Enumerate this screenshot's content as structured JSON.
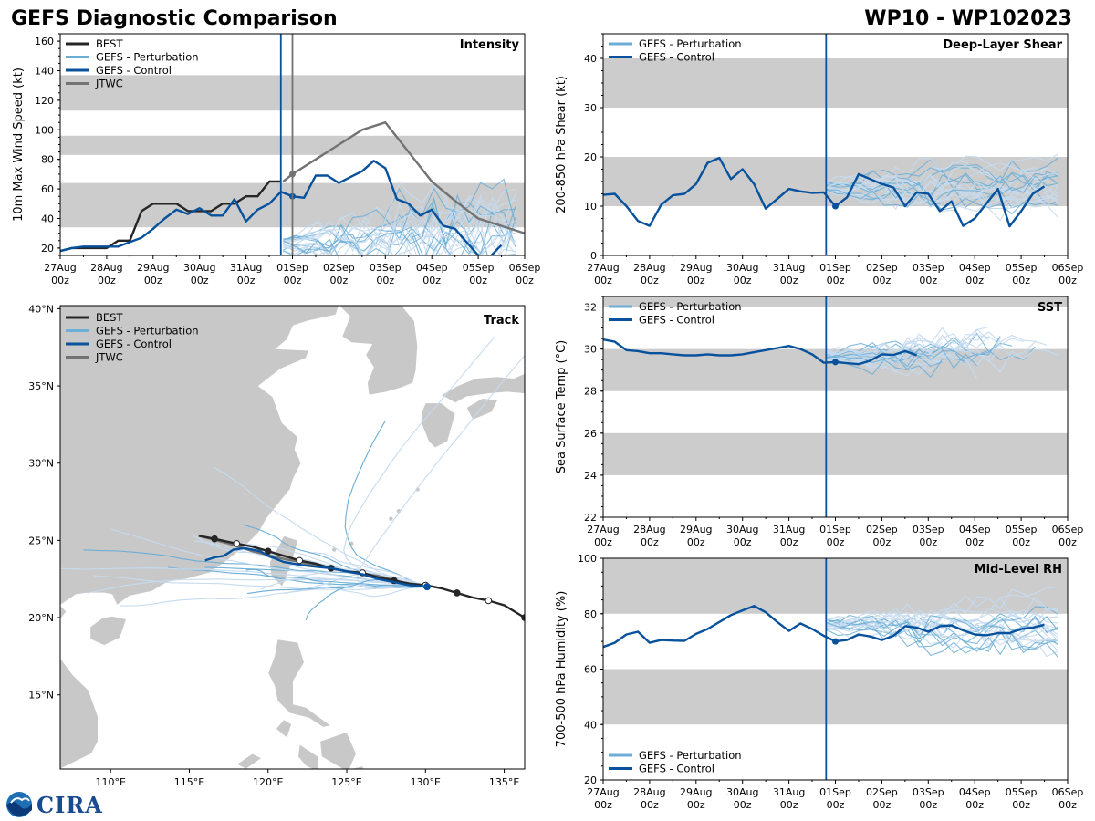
{
  "figure": {
    "title_left": "GEFS Diagnostic Comparison",
    "title_right": "WP10 - WP102023",
    "logo_text": "CIRA",
    "logo_icon": "noaa-logo-icon",
    "init_day": 4.8
  },
  "colors": {
    "best": "#262626",
    "perturbation": "#6baed6",
    "perturbation_light": "#c6dbef",
    "control": "#08519c",
    "jtwc": "#737373",
    "band": "#cccccc",
    "land": "#c8c8c8",
    "vline_init": "#08519c",
    "vline_jtwc": "#737373"
  },
  "chart_data": [
    {
      "id": "intensity",
      "type": "line",
      "title": "Intensity",
      "ylabel": "10m Max Wind Speed (kt)",
      "xlabel": "",
      "x_tick_labels": [
        [
          "27Aug",
          "00z"
        ],
        [
          "28Aug",
          "00z"
        ],
        [
          "29Aug",
          "00z"
        ],
        [
          "30Aug",
          "00z"
        ],
        [
          "31Aug",
          "00z"
        ],
        [
          "01Sep",
          "00z"
        ],
        [
          "02Sep",
          "00z"
        ],
        [
          "03Sep",
          "00z"
        ],
        [
          "04Sep",
          "00z"
        ],
        [
          "05Sep",
          "00z"
        ],
        [
          "06Sep",
          "00z"
        ]
      ],
      "xlim": [
        0,
        10
      ],
      "ylim": [
        15,
        165
      ],
      "y_ticks": [
        20,
        40,
        60,
        80,
        100,
        120,
        140,
        160
      ],
      "bands": [
        [
          34,
          64
        ],
        [
          83,
          96
        ],
        [
          113,
          137
        ]
      ],
      "vlines": [
        4.75,
        5.0
      ],
      "legend": [
        "BEST",
        "GEFS - Perturbation",
        "GEFS - Control",
        "JTWC"
      ],
      "series": [
        {
          "name": "BEST",
          "x": [
            0,
            0.25,
            0.5,
            0.75,
            1,
            1.25,
            1.5,
            1.75,
            2,
            2.25,
            2.5,
            2.75,
            3,
            3.25,
            3.5,
            3.75,
            4,
            4.25,
            4.5,
            4.75
          ],
          "y": [
            18,
            20,
            20,
            20,
            20,
            25,
            25,
            45,
            50,
            50,
            50,
            45,
            45,
            45,
            50,
            50,
            55,
            55,
            65,
            65
          ]
        },
        {
          "name": "GEFS - Control",
          "x": [
            0,
            0.25,
            0.5,
            0.75,
            1,
            1.25,
            1.5,
            1.75,
            2,
            2.25,
            2.5,
            2.75,
            3,
            3.25,
            3.5,
            3.75,
            4,
            4.25,
            4.5,
            4.75,
            5,
            5.25,
            5.5,
            5.75,
            6,
            6.25,
            6.5,
            6.75,
            7,
            7.25,
            7.5,
            7.75,
            8,
            8.25,
            8.5,
            8.75,
            9,
            9.25,
            9.5
          ],
          "y": [
            18,
            20,
            21,
            21,
            21,
            21,
            24,
            27,
            33,
            40,
            46,
            43,
            47,
            42,
            42,
            53,
            38,
            46,
            50,
            58,
            55,
            54,
            69,
            69,
            64,
            68,
            72,
            79,
            74,
            53,
            50,
            42,
            46,
            35,
            33,
            24,
            15,
            14,
            22
          ]
        },
        {
          "name": "JTWC",
          "x": [
            4.8,
            5.0,
            5.5,
            6.0,
            6.5,
            7.0,
            7.5,
            8.0,
            8.5,
            9.0,
            9.5,
            10.0
          ],
          "y": [
            65,
            70,
            80,
            90,
            100,
            105,
            85,
            65,
            52,
            40,
            35,
            30
          ]
        }
      ]
    },
    {
      "id": "shear",
      "type": "line",
      "title": "Deep-Layer Shear",
      "ylabel": "200-850 hPa Shear (kt)",
      "xlabel": "",
      "x_tick_labels": [
        [
          "27Aug",
          "00z"
        ],
        [
          "28Aug",
          "00z"
        ],
        [
          "29Aug",
          "00z"
        ],
        [
          "30Aug",
          "00z"
        ],
        [
          "31Aug",
          "00z"
        ],
        [
          "01Sep",
          "00z"
        ],
        [
          "02Sep",
          "00z"
        ],
        [
          "03Sep",
          "00z"
        ],
        [
          "04Sep",
          "00z"
        ],
        [
          "05Sep",
          "00z"
        ],
        [
          "06Sep",
          "00z"
        ]
      ],
      "xlim": [
        0,
        10
      ],
      "ylim": [
        0,
        45
      ],
      "y_ticks": [
        0,
        10,
        20,
        30,
        40
      ],
      "bands": [
        [
          10,
          20
        ],
        [
          30,
          40
        ]
      ],
      "vlines": [
        4.8
      ],
      "legend": [
        "GEFS - Perturbation",
        "GEFS - Control"
      ],
      "series": [
        {
          "name": "GEFS - Control",
          "x": [
            0,
            0.25,
            0.5,
            0.75,
            1,
            1.25,
            1.5,
            1.75,
            2,
            2.25,
            2.5,
            2.75,
            3,
            3.25,
            3.5,
            3.75,
            4,
            4.25,
            4.5,
            4.75,
            5,
            5.25,
            5.5,
            5.75,
            6,
            6.25,
            6.5,
            6.75,
            7,
            7.25,
            7.5,
            7.75,
            8,
            8.25,
            8.5,
            8.75,
            9,
            9.25,
            9.5
          ],
          "y": [
            12.3,
            12.5,
            10,
            7,
            6,
            10.3,
            12.2,
            12.5,
            14.5,
            18.8,
            19.8,
            15.5,
            17.5,
            14.5,
            9.5,
            11.5,
            13.5,
            13,
            12.7,
            12.8,
            10,
            11.8,
            16.5,
            15.5,
            14.5,
            13.8,
            10,
            12.8,
            12.5,
            9,
            11,
            6,
            7.5,
            10.5,
            13.5,
            5.9,
            9,
            12.5,
            14
          ]
        }
      ]
    },
    {
      "id": "sst",
      "type": "line",
      "title": "SST",
      "ylabel": "Sea Surface Temp (°C)",
      "xlabel": "",
      "x_tick_labels": [
        [
          "27Aug",
          "00z"
        ],
        [
          "28Aug",
          "00z"
        ],
        [
          "29Aug",
          "00z"
        ],
        [
          "30Aug",
          "00z"
        ],
        [
          "31Aug",
          "00z"
        ],
        [
          "01Sep",
          "00z"
        ],
        [
          "02Sep",
          "00z"
        ],
        [
          "03Sep",
          "00z"
        ],
        [
          "04Sep",
          "00z"
        ],
        [
          "05Sep",
          "00z"
        ],
        [
          "06Sep",
          "00z"
        ]
      ],
      "xlim": [
        0,
        10
      ],
      "ylim": [
        22,
        32.5
      ],
      "y_ticks": [
        22,
        24,
        26,
        28,
        30,
        32
      ],
      "bands": [
        [
          24,
          26
        ],
        [
          28,
          30
        ],
        [
          32,
          32.5
        ]
      ],
      "vlines": [
        4.8
      ],
      "legend": [
        "GEFS - Perturbation",
        "GEFS - Control"
      ],
      "series": [
        {
          "name": "GEFS - Control",
          "x": [
            0,
            0.25,
            0.5,
            0.75,
            1,
            1.25,
            1.5,
            1.75,
            2,
            2.25,
            2.5,
            2.75,
            3,
            3.25,
            3.5,
            3.75,
            4,
            4.25,
            4.5,
            4.75,
            5,
            5.25,
            5.5,
            5.75,
            6,
            6.25,
            6.5,
            6.75
          ],
          "y": [
            30.45,
            30.35,
            29.95,
            29.9,
            29.8,
            29.8,
            29.75,
            29.7,
            29.7,
            29.75,
            29.7,
            29.7,
            29.75,
            29.85,
            29.95,
            30.05,
            30.15,
            30.0,
            29.75,
            29.35,
            29.38,
            29.33,
            29.28,
            29.45,
            29.75,
            29.72,
            29.9,
            29.7
          ]
        }
      ]
    },
    {
      "id": "rh",
      "type": "line",
      "title": "Mid-Level RH",
      "ylabel": "700-500 hPa Humidity (%)",
      "xlabel": "",
      "x_tick_labels": [
        [
          "27Aug",
          "00z"
        ],
        [
          "28Aug",
          "00z"
        ],
        [
          "29Aug",
          "00z"
        ],
        [
          "30Aug",
          "00z"
        ],
        [
          "31Aug",
          "00z"
        ],
        [
          "01Sep",
          "00z"
        ],
        [
          "02Sep",
          "00z"
        ],
        [
          "03Sep",
          "00z"
        ],
        [
          "04Sep",
          "00z"
        ],
        [
          "05Sep",
          "00z"
        ],
        [
          "06Sep",
          "00z"
        ]
      ],
      "xlim": [
        0,
        10
      ],
      "ylim": [
        20,
        100
      ],
      "y_ticks": [
        20,
        40,
        60,
        80,
        100
      ],
      "bands": [
        [
          40,
          60
        ],
        [
          80,
          100
        ]
      ],
      "vlines": [
        4.8
      ],
      "legend": [
        "GEFS - Perturbation",
        "GEFS - Control"
      ],
      "series": [
        {
          "name": "GEFS - Control",
          "x": [
            0,
            0.25,
            0.5,
            0.75,
            1,
            1.25,
            1.5,
            1.75,
            2,
            2.25,
            2.5,
            2.75,
            3,
            3.25,
            3.5,
            3.75,
            4,
            4.25,
            4.5,
            4.75,
            5,
            5.25,
            5.5,
            5.75,
            6,
            6.25,
            6.5,
            6.75,
            7,
            7.25,
            7.5,
            7.75,
            8,
            8.25,
            8.5,
            8.75,
            9,
            9.25,
            9.5
          ],
          "y": [
            68,
            69.5,
            72.5,
            73.5,
            69.5,
            70.5,
            70.3,
            70.2,
            72.7,
            74.5,
            77,
            79.5,
            81.2,
            82.8,
            80.5,
            77,
            73.8,
            76.5,
            74.5,
            72,
            70,
            70.5,
            72.5,
            71.8,
            70.5,
            72,
            75.5,
            75,
            73.5,
            75.5,
            75.8,
            74,
            72.5,
            72.2,
            73,
            73,
            74.5,
            75,
            76
          ]
        }
      ]
    },
    {
      "id": "track",
      "type": "scatter",
      "title": "Track",
      "xlabel": "",
      "ylabel": "",
      "xlim": [
        106.8,
        136.3
      ],
      "ylim": [
        10.2,
        40.2
      ],
      "x_ticks": [
        110,
        115,
        120,
        125,
        130,
        135
      ],
      "x_tick_labels": [
        "110°E",
        "115°E",
        "120°E",
        "125°E",
        "130°E",
        "135°E"
      ],
      "y_ticks": [
        15,
        20,
        25,
        30,
        35,
        40
      ],
      "y_tick_labels": [
        "15°N",
        "20°N",
        "25°N",
        "30°N",
        "35°N",
        "40°N"
      ],
      "legend": [
        "BEST",
        "GEFS - Perturbation",
        "GEFS - Control",
        "JTWC"
      ],
      "series": [
        {
          "name": "BEST",
          "lon": [
            136.3,
            135.0,
            134.0,
            133.0,
            132.0,
            131.0,
            130.0,
            129.0,
            128.0,
            127.0,
            126.0,
            125.0,
            124.0,
            123.0,
            122.0,
            121.0,
            120.0,
            119.0,
            118.0,
            117.5,
            116.6,
            115.6
          ],
          "lat": [
            20.0,
            20.8,
            21.1,
            21.3,
            21.6,
            21.9,
            22.1,
            22.2,
            22.4,
            22.6,
            22.9,
            23.0,
            23.2,
            23.5,
            23.7,
            24.0,
            24.3,
            24.6,
            24.8,
            24.9,
            25.1,
            25.3
          ]
        },
        {
          "name": "GEFS - Control",
          "lon": [
            130.1,
            129.0,
            128.0,
            127.0,
            126.0,
            125.0,
            124.0,
            123.0,
            122.2,
            121.0,
            120.0,
            119.5,
            118.5,
            117.8,
            117.2,
            116.6,
            116.0
          ],
          "lat": [
            22.0,
            22.1,
            22.3,
            22.5,
            22.8,
            23.0,
            23.2,
            23.3,
            23.4,
            23.6,
            24.0,
            24.3,
            24.5,
            24.4,
            24.0,
            23.9,
            23.7
          ]
        },
        {
          "name": "JTWC",
          "lon": [
            130.1,
            129.5,
            128.5,
            127.0,
            125.0,
            123.0,
            121.0,
            119.0,
            117.5,
            115.6
          ],
          "lat": [
            22.0,
            22.1,
            22.3,
            22.7,
            23.0,
            23.4,
            23.8,
            24.3,
            24.8,
            25.3
          ]
        }
      ]
    }
  ]
}
